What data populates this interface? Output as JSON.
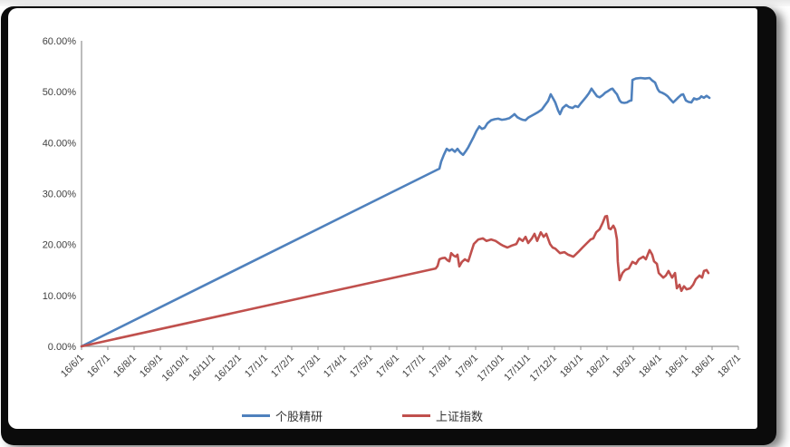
{
  "frame": {
    "border_color": "#0b0b0b",
    "canvas_color": "#ffffff"
  },
  "chart_data": {
    "type": "line",
    "title": "",
    "grid": false,
    "legend_position": "bottom",
    "x_axis": {
      "label": "",
      "tick_labels": [
        "16/6/1",
        "16/7/1",
        "16/8/1",
        "16/9/1",
        "16/10/1",
        "16/11/1",
        "16/12/1",
        "17/1/1",
        "17/2/1",
        "17/3/1",
        "17/4/1",
        "17/5/1",
        "17/6/1",
        "17/7/1",
        "17/8/1",
        "17/9/1",
        "17/10/1",
        "17/11/1",
        "17/12/1",
        "18/1/1",
        "18/2/1",
        "18/3/1",
        "18/4/1",
        "18/5/1",
        "18/6/1",
        "18/7/1"
      ],
      "range_months": [
        0,
        25
      ]
    },
    "y_axis": {
      "label": "",
      "tick_labels": [
        "0.00%",
        "10.00%",
        "20.00%",
        "30.00%",
        "40.00%",
        "50.00%",
        "60.00%"
      ],
      "min": 0,
      "max": 60,
      "step": 10,
      "unit": "percent"
    },
    "axis_color": "#8f8f8f",
    "tick_label_color": "#404040",
    "series": [
      {
        "name": "个股精研",
        "color": "#4F81BD",
        "points": [
          [
            0,
            0
          ],
          [
            13.62,
            34.9
          ],
          [
            13.69,
            36.3
          ],
          [
            13.79,
            37.6
          ],
          [
            13.9,
            38.8
          ],
          [
            14,
            38.4
          ],
          [
            14.1,
            38.7
          ],
          [
            14.21,
            38.2
          ],
          [
            14.31,
            38.8
          ],
          [
            14.41,
            38.1
          ],
          [
            14.52,
            37.6
          ],
          [
            14.62,
            38.3
          ],
          [
            14.72,
            39.1
          ],
          [
            14.83,
            40.2
          ],
          [
            14.93,
            41.2
          ],
          [
            15.03,
            42.3
          ],
          [
            15.14,
            43.2
          ],
          [
            15.24,
            42.7
          ],
          [
            15.34,
            42.9
          ],
          [
            15.45,
            43.8
          ],
          [
            15.59,
            44.4
          ],
          [
            15.72,
            44.6
          ],
          [
            15.86,
            44.7
          ],
          [
            16,
            44.5
          ],
          [
            16.14,
            44.6
          ],
          [
            16.28,
            44.8
          ],
          [
            16.41,
            45.3
          ],
          [
            16.48,
            45.6
          ],
          [
            16.59,
            45
          ],
          [
            16.69,
            44.7
          ],
          [
            16.79,
            44.5
          ],
          [
            16.9,
            44.4
          ],
          [
            17,
            44.9
          ],
          [
            17.1,
            45.2
          ],
          [
            17.24,
            45.6
          ],
          [
            17.38,
            46
          ],
          [
            17.52,
            46.5
          ],
          [
            17.66,
            47.5
          ],
          [
            17.76,
            48.2
          ],
          [
            17.86,
            49.5
          ],
          [
            17.97,
            48.5
          ],
          [
            18.03,
            47.9
          ],
          [
            18.14,
            46.3
          ],
          [
            18.21,
            45.6
          ],
          [
            18.31,
            46.8
          ],
          [
            18.45,
            47.4
          ],
          [
            18.55,
            47
          ],
          [
            18.69,
            46.8
          ],
          [
            18.79,
            47.2
          ],
          [
            18.9,
            47
          ],
          [
            19,
            47.7
          ],
          [
            19.1,
            48.3
          ],
          [
            19.21,
            49
          ],
          [
            19.31,
            49.7
          ],
          [
            19.41,
            50.6
          ],
          [
            19.52,
            49.8
          ],
          [
            19.62,
            49.1
          ],
          [
            19.72,
            48.9
          ],
          [
            19.83,
            49.3
          ],
          [
            19.93,
            49.8
          ],
          [
            20.03,
            50.1
          ],
          [
            20.14,
            50.5
          ],
          [
            20.21,
            50.6
          ],
          [
            20.31,
            49.9
          ],
          [
            20.38,
            49.5
          ],
          [
            20.48,
            48.3
          ],
          [
            20.55,
            47.9
          ],
          [
            20.66,
            47.8
          ],
          [
            20.76,
            47.9
          ],
          [
            20.86,
            48.2
          ],
          [
            20.93,
            48.3
          ],
          [
            20.97,
            52.3
          ],
          [
            21.1,
            52.6
          ],
          [
            21.28,
            52.7
          ],
          [
            21.45,
            52.6
          ],
          [
            21.62,
            52.7
          ],
          [
            21.72,
            52.2
          ],
          [
            21.83,
            51.8
          ],
          [
            21.93,
            50.5
          ],
          [
            22,
            50
          ],
          [
            22.1,
            49.8
          ],
          [
            22.21,
            49.5
          ],
          [
            22.31,
            49.1
          ],
          [
            22.41,
            48.5
          ],
          [
            22.52,
            47.9
          ],
          [
            22.62,
            48.4
          ],
          [
            22.72,
            48.9
          ],
          [
            22.83,
            49.4
          ],
          [
            22.9,
            49.5
          ],
          [
            23,
            48.3
          ],
          [
            23.1,
            48
          ],
          [
            23.21,
            47.9
          ],
          [
            23.31,
            48.7
          ],
          [
            23.41,
            48.5
          ],
          [
            23.52,
            48.7
          ],
          [
            23.59,
            49.1
          ],
          [
            23.69,
            48.8
          ],
          [
            23.79,
            49.2
          ],
          [
            23.9,
            48.8
          ]
        ]
      },
      {
        "name": "上证指数",
        "color": "#C0504D",
        "points": [
          [
            0,
            0
          ],
          [
            13.48,
            15.3
          ],
          [
            13.55,
            15.8
          ],
          [
            13.62,
            17.1
          ],
          [
            13.72,
            17.3
          ],
          [
            13.83,
            17.4
          ],
          [
            13.93,
            16.9
          ],
          [
            14,
            16.7
          ],
          [
            14.07,
            18.3
          ],
          [
            14.17,
            17.8
          ],
          [
            14.24,
            17.6
          ],
          [
            14.31,
            18
          ],
          [
            14.38,
            15.7
          ],
          [
            14.48,
            16.6
          ],
          [
            14.59,
            17.1
          ],
          [
            14.72,
            16.7
          ],
          [
            14.83,
            18.5
          ],
          [
            14.93,
            20.1
          ],
          [
            15.1,
            21
          ],
          [
            15.28,
            21.2
          ],
          [
            15.41,
            20.7
          ],
          [
            15.59,
            21
          ],
          [
            15.76,
            20.7
          ],
          [
            15.93,
            20.1
          ],
          [
            16.03,
            19.8
          ],
          [
            16.21,
            19.4
          ],
          [
            16.38,
            19.8
          ],
          [
            16.55,
            20.1
          ],
          [
            16.66,
            21.2
          ],
          [
            16.79,
            20.7
          ],
          [
            16.9,
            21.5
          ],
          [
            17,
            20.3
          ],
          [
            17.14,
            21.2
          ],
          [
            17.24,
            22.1
          ],
          [
            17.34,
            20.7
          ],
          [
            17.48,
            22.4
          ],
          [
            17.59,
            21.5
          ],
          [
            17.69,
            22.1
          ],
          [
            17.83,
            20.1
          ],
          [
            17.93,
            19.4
          ],
          [
            18.03,
            19.2
          ],
          [
            18.21,
            18.3
          ],
          [
            18.38,
            18.5
          ],
          [
            18.52,
            18
          ],
          [
            18.62,
            17.8
          ],
          [
            18.72,
            17.6
          ],
          [
            18.9,
            18.5
          ],
          [
            19.07,
            19.4
          ],
          [
            19.24,
            20.3
          ],
          [
            19.38,
            21
          ],
          [
            19.48,
            21.2
          ],
          [
            19.59,
            22.4
          ],
          [
            19.72,
            23
          ],
          [
            19.83,
            24.2
          ],
          [
            19.93,
            25.5
          ],
          [
            20,
            25.6
          ],
          [
            20.07,
            23.2
          ],
          [
            20.14,
            23
          ],
          [
            20.24,
            23.7
          ],
          [
            20.31,
            23
          ],
          [
            20.38,
            21
          ],
          [
            20.41,
            16.7
          ],
          [
            20.48,
            13
          ],
          [
            20.59,
            14.4
          ],
          [
            20.69,
            15
          ],
          [
            20.83,
            15.3
          ],
          [
            20.97,
            16.6
          ],
          [
            21.1,
            16.2
          ],
          [
            21.21,
            17.1
          ],
          [
            21.38,
            17.6
          ],
          [
            21.48,
            17.1
          ],
          [
            21.62,
            18.9
          ],
          [
            21.72,
            18
          ],
          [
            21.79,
            16.7
          ],
          [
            21.9,
            16.2
          ],
          [
            21.97,
            14.4
          ],
          [
            22.14,
            13.5
          ],
          [
            22.24,
            13.9
          ],
          [
            22.34,
            14.8
          ],
          [
            22.48,
            13.5
          ],
          [
            22.59,
            14.4
          ],
          [
            22.66,
            11.4
          ],
          [
            22.76,
            12.1
          ],
          [
            22.83,
            10.9
          ],
          [
            22.93,
            11.8
          ],
          [
            23.03,
            11.2
          ],
          [
            23.17,
            11.4
          ],
          [
            23.28,
            12.1
          ],
          [
            23.38,
            13.2
          ],
          [
            23.52,
            13.9
          ],
          [
            23.62,
            13.5
          ],
          [
            23.69,
            14.8
          ],
          [
            23.79,
            15
          ],
          [
            23.86,
            14.4
          ]
        ]
      }
    ]
  }
}
